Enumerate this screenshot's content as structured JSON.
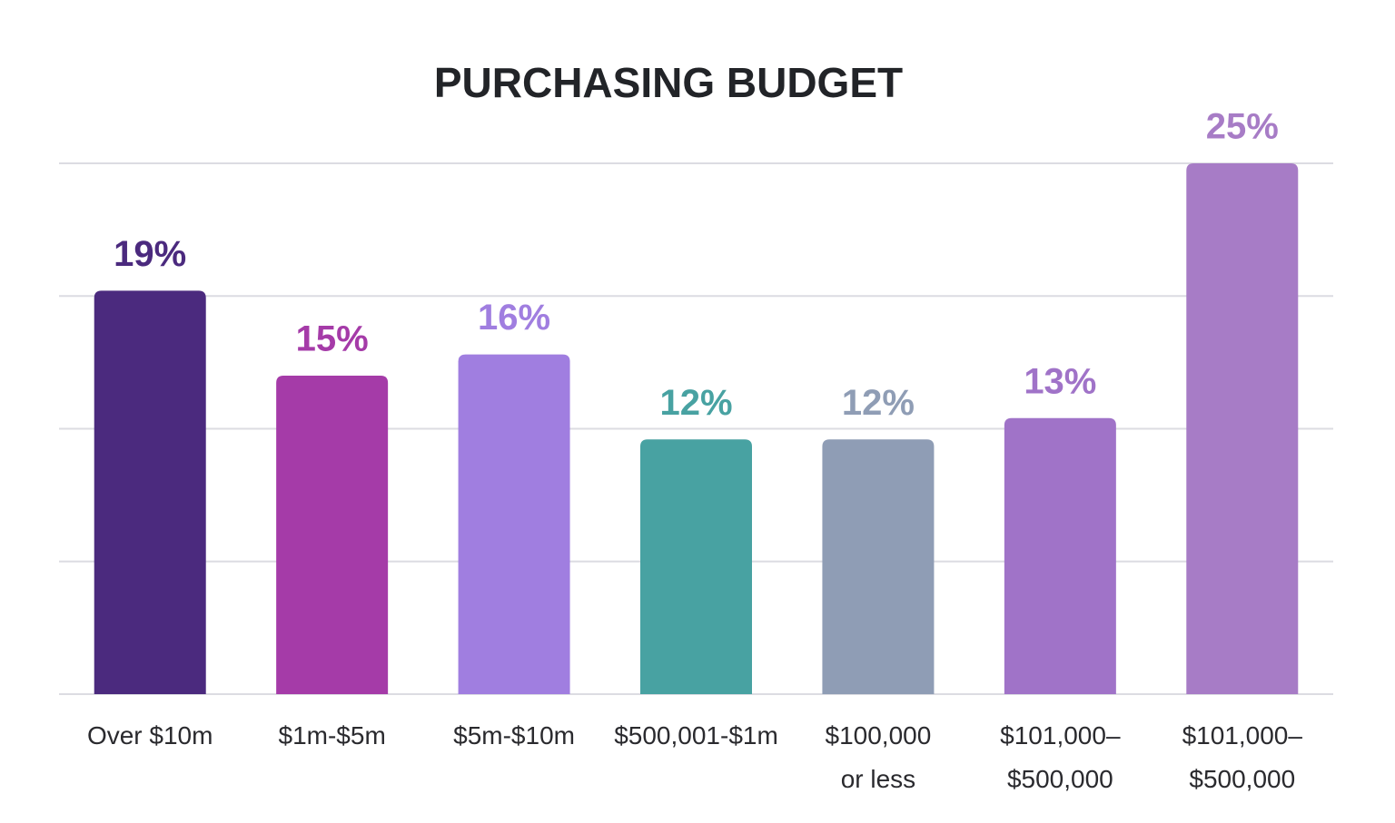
{
  "chart_data": {
    "type": "bar",
    "title": "PURCHASING BUDGET",
    "categories": [
      "Over $10m",
      "$1m-$5m",
      "$5m-$10m",
      "$500,001-$1m",
      "$100,000\nor less",
      "$101,000–\n$500,000",
      "$101,000–\n$500,000"
    ],
    "values": [
      19,
      15,
      16,
      12,
      12,
      13,
      25
    ],
    "value_labels": [
      "19%",
      "15%",
      "16%",
      "12%",
      "12%",
      "13%",
      "25%"
    ],
    "colors": [
      "#4b2a7e",
      "#a53ba8",
      "#a07ee0",
      "#48a2a2",
      "#8f9db5",
      "#a073c8",
      "#a77cc6"
    ],
    "ylim": [
      0,
      25
    ],
    "yticks": [
      0,
      6.25,
      12.5,
      18.75,
      25
    ],
    "grid": true
  }
}
